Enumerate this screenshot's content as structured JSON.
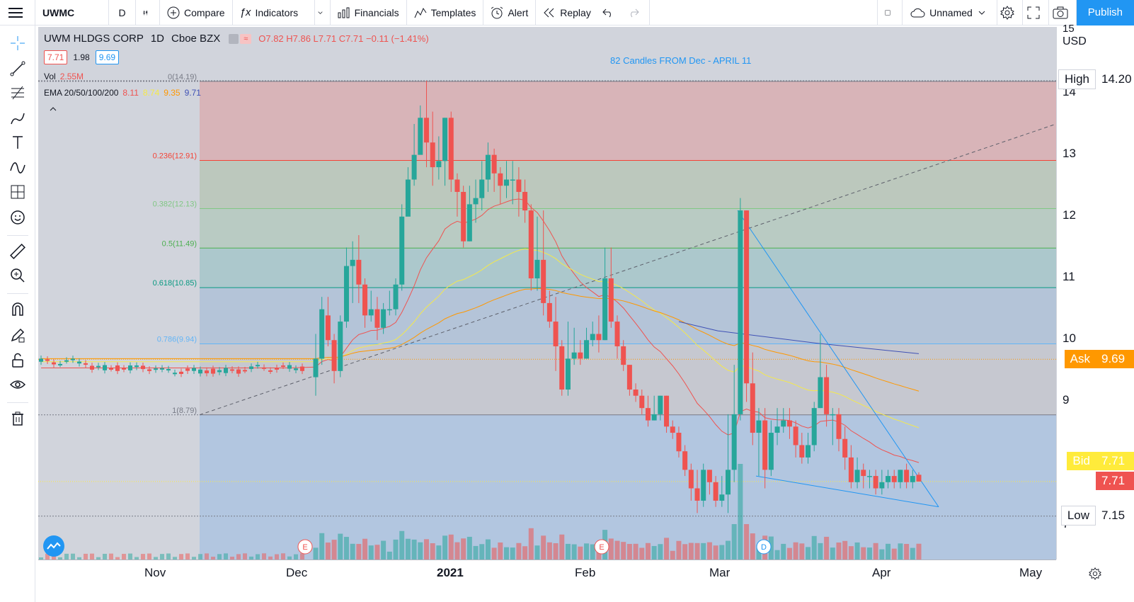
{
  "toolbar": {
    "symbol": "UWMC",
    "interval": "D",
    "compare": "Compare",
    "indicators": "Indicators",
    "financials": "Financials",
    "templates": "Templates",
    "alert": "Alert",
    "replay": "Replay",
    "layout_name": "Unnamed",
    "publish": "Publish"
  },
  "legend": {
    "name": "UWM HLDGS CORP",
    "interval": "1D",
    "exchange": "Cboe BZX",
    "ohlc": "O7.82 H7.86 L7.71 C7.71 −0.11 (−1.41%)",
    "bid": "7.71",
    "spread": "1.98",
    "ask": "9.69",
    "vol_label": "Vol",
    "vol_value": "2.55M",
    "ema_label": "EMA 20/50/100/200",
    "ema20": "8.11",
    "ema50": "8.74",
    "ema100": "9.35",
    "ema200": "9.71"
  },
  "annotation": "82 Candles  FROM Dec - APRIL 11",
  "fib_levels": [
    {
      "label": "0(14.19)",
      "price": 14.19
    },
    {
      "label": "0.236(12.91)",
      "price": 12.91
    },
    {
      "label": "0.382(12.13)",
      "price": 12.13
    },
    {
      "label": "0.5(11.49)",
      "price": 11.49
    },
    {
      "label": "0.618(10.85)",
      "price": 10.85
    },
    {
      "label": "0.786(9.94)",
      "price": 9.94
    },
    {
      "label": "1(8.79)",
      "price": 8.79
    }
  ],
  "price_axis": {
    "currency": "USD",
    "ticks": [
      "15",
      "14",
      "13",
      "12",
      "11",
      "10",
      "9",
      "7"
    ],
    "high_label": "High",
    "high_value": "14.20",
    "ask_label": "Ask",
    "ask_value": "9.69",
    "bid_label": "Bid",
    "bid_value": "7.71",
    "last_value": "7.71",
    "low_label": "Low",
    "low_value": "7.15"
  },
  "time_axis": [
    "Nov",
    "Dec",
    "2021",
    "Feb",
    "Mar",
    "Apr",
    "May"
  ],
  "events": [
    "E",
    "E",
    "D"
  ],
  "colors": {
    "up": "#26a69a",
    "down": "#ef5350",
    "accent": "#2196f3"
  },
  "chart_data": {
    "type": "candlestick",
    "ylim": [
      6.6,
      15.1
    ],
    "candles": [
      [
        9.4,
        9.7,
        10.1,
        9.1
      ],
      [
        9.7,
        10.5,
        10.7,
        9.6
      ],
      [
        10.4,
        10.0,
        10.7,
        9.9
      ],
      [
        10.0,
        9.5,
        10.1,
        9.3
      ],
      [
        9.5,
        10.3,
        10.4,
        9.4
      ],
      [
        10.3,
        11.2,
        11.5,
        10.2
      ],
      [
        11.2,
        11.3,
        11.6,
        10.6
      ],
      [
        11.3,
        10.9,
        11.7,
        10.6
      ],
      [
        10.9,
        10.4,
        11.0,
        10.2
      ],
      [
        10.4,
        10.5,
        10.8,
        10.3
      ],
      [
        10.5,
        10.2,
        10.7,
        10.0
      ],
      [
        10.2,
        10.5,
        10.6,
        10.1
      ],
      [
        10.5,
        10.5,
        10.8,
        10.4
      ],
      [
        10.5,
        10.9,
        11.0,
        10.4
      ],
      [
        10.9,
        12.0,
        12.2,
        10.8
      ],
      [
        12.0,
        12.6,
        12.8,
        12.4
      ],
      [
        12.6,
        13.0,
        13.5,
        12.5
      ],
      [
        13.0,
        13.6,
        13.8,
        13.1
      ],
      [
        13.6,
        13.2,
        14.2,
        12.8
      ],
      [
        13.2,
        12.8,
        13.7,
        12.5
      ],
      [
        12.8,
        12.9,
        13.3,
        12.6
      ],
      [
        12.9,
        13.6,
        13.6,
        12.5
      ],
      [
        13.6,
        12.6,
        13.7,
        12.4
      ],
      [
        12.6,
        12.4,
        12.7,
        12.0
      ],
      [
        12.4,
        11.6,
        12.5,
        11.5
      ],
      [
        11.6,
        12.2,
        12.5,
        11.6
      ],
      [
        12.2,
        12.3,
        12.6,
        11.9
      ],
      [
        12.3,
        12.6,
        12.9,
        12.1
      ],
      [
        12.6,
        13.0,
        13.2,
        12.4
      ],
      [
        13.0,
        12.7,
        13.1,
        12.4
      ],
      [
        12.7,
        12.5,
        12.8,
        12.2
      ],
      [
        12.5,
        12.6,
        12.9,
        12.3
      ],
      [
        12.6,
        12.6,
        12.9,
        12.2
      ],
      [
        12.6,
        12.4,
        12.8,
        12.0
      ],
      [
        12.4,
        12.1,
        12.6,
        11.9
      ],
      [
        12.1,
        11.0,
        12.2,
        10.8
      ],
      [
        11.0,
        11.3,
        12.0,
        10.8
      ],
      [
        11.3,
        10.6,
        12.1,
        10.4
      ],
      [
        10.6,
        10.3,
        10.8,
        10.2
      ],
      [
        10.3,
        9.9,
        10.7,
        9.5
      ],
      [
        9.9,
        9.2,
        10.0,
        9.1
      ],
      [
        9.2,
        9.7,
        10.3,
        9.1
      ],
      [
        9.7,
        9.8,
        10.2,
        9.6
      ],
      [
        9.8,
        9.7,
        10.0,
        9.6
      ],
      [
        9.7,
        10.0,
        10.2,
        9.7
      ],
      [
        10.0,
        10.1,
        10.3,
        9.9
      ],
      [
        10.1,
        10.0,
        10.4,
        9.8
      ],
      [
        10.0,
        11.0,
        11.5,
        10.0
      ],
      [
        11.0,
        10.3,
        11.5,
        10.2
      ],
      [
        10.3,
        9.9,
        10.4,
        9.7
      ],
      [
        9.9,
        9.6,
        10.0,
        9.5
      ],
      [
        9.6,
        9.2,
        9.6,
        9.1
      ],
      [
        9.2,
        9.1,
        9.3,
        9.0
      ],
      [
        9.1,
        8.9,
        9.2,
        8.8
      ],
      [
        8.9,
        8.7,
        9.1,
        8.6
      ],
      [
        8.7,
        8.8,
        9.1,
        8.7
      ],
      [
        8.8,
        9.1,
        9.1,
        8.7
      ],
      [
        9.1,
        8.6,
        9.1,
        8.5
      ],
      [
        8.6,
        8.5,
        8.7,
        8.4
      ],
      [
        8.5,
        8.2,
        8.6,
        8.1
      ],
      [
        8.2,
        7.9,
        8.3,
        7.8
      ],
      [
        7.9,
        7.6,
        8.0,
        7.4
      ],
      [
        7.6,
        7.4,
        7.9,
        7.2
      ],
      [
        7.4,
        7.9,
        8.0,
        7.3
      ],
      [
        7.9,
        7.7,
        7.9,
        7.5
      ],
      [
        7.7,
        7.4,
        7.8,
        7.3
      ],
      [
        7.4,
        7.5,
        7.8,
        7.3
      ],
      [
        7.5,
        7.9,
        8.8,
        7.2
      ],
      [
        7.9,
        8.8,
        9.6,
        7.7
      ],
      [
        8.8,
        12.1,
        12.3,
        8.7
      ],
      [
        12.1,
        9.3,
        12.1,
        9.0
      ],
      [
        9.3,
        8.5,
        9.8,
        8.3
      ],
      [
        8.5,
        8.7,
        8.9,
        7.8
      ],
      [
        8.7,
        7.9,
        8.9,
        7.6
      ],
      [
        7.9,
        8.5,
        8.7,
        7.8
      ],
      [
        8.5,
        8.6,
        8.9,
        8.3
      ],
      [
        8.6,
        8.7,
        8.9,
        8.5
      ],
      [
        8.7,
        8.6,
        8.9,
        8.4
      ],
      [
        8.6,
        8.3,
        8.7,
        8.1
      ],
      [
        8.3,
        8.1,
        8.5,
        8.0
      ],
      [
        8.1,
        8.3,
        8.5,
        8.0
      ],
      [
        8.3,
        8.9,
        9.0,
        8.2
      ],
      [
        8.9,
        9.4,
        10.1,
        8.9
      ],
      [
        9.4,
        8.8,
        9.6,
        8.6
      ],
      [
        8.8,
        8.8,
        8.9,
        8.3
      ],
      [
        8.8,
        8.4,
        8.9,
        8.2
      ],
      [
        8.4,
        8.1,
        8.6,
        7.9
      ],
      [
        8.1,
        7.7,
        8.3,
        7.6
      ],
      [
        7.7,
        7.9,
        8.1,
        7.6
      ],
      [
        7.9,
        7.8,
        8.0,
        7.6
      ],
      [
        7.8,
        7.8,
        7.9,
        7.6
      ],
      [
        7.8,
        7.6,
        7.9,
        7.5
      ],
      [
        7.6,
        7.7,
        7.9,
        7.5
      ],
      [
        7.7,
        7.8,
        7.9,
        7.6
      ],
      [
        7.8,
        7.7,
        7.9,
        7.6
      ],
      [
        7.7,
        7.9,
        7.9,
        7.6
      ],
      [
        7.9,
        7.7,
        8.0,
        7.6
      ],
      [
        7.7,
        7.8,
        7.9,
        7.6
      ],
      [
        7.82,
        7.71,
        7.86,
        7.71
      ]
    ]
  }
}
